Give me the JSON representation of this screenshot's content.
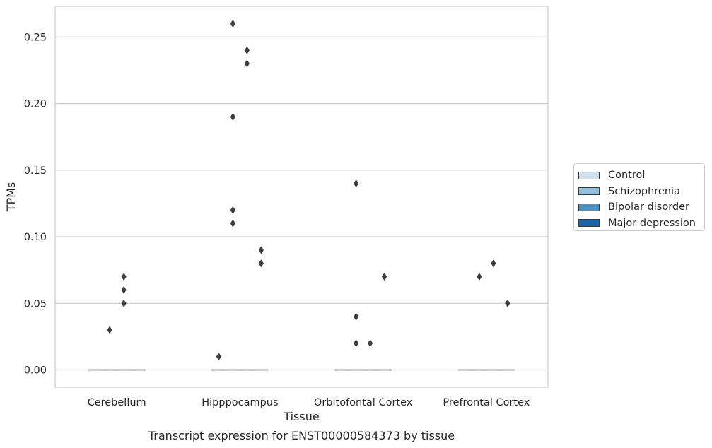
{
  "chart_data": {
    "type": "box",
    "xlabel": "Tissue",
    "ylabel": "TPMs",
    "caption": "Transcript expression for ENST00000584373 by tissue",
    "categories": [
      "Cerebellum",
      "Hipppocampus",
      "Orbitofontal Cortex",
      "Prefrontal Cortex"
    ],
    "ylim": [
      -0.013,
      0.273
    ],
    "yticks": [
      0.0,
      0.05,
      0.1,
      0.15,
      0.2,
      0.25
    ],
    "ytick_labels": [
      "0.00",
      "0.05",
      "0.10",
      "0.15",
      "0.20",
      "0.25"
    ],
    "grid": "horizontal",
    "legend_position": "right",
    "series": [
      {
        "name": "Control",
        "color": "#d0e1f0"
      },
      {
        "name": "Schizophrenia",
        "color": "#93bfdb"
      },
      {
        "name": "Bipolar disorder",
        "color": "#4a90c2"
      },
      {
        "name": "Major depression",
        "color": "#1b64a8"
      }
    ],
    "medians": [
      [
        0.0,
        0.0,
        0.0,
        0.0
      ],
      [
        0.0,
        0.0,
        0.0,
        0.0
      ],
      [
        0.0,
        0.0,
        0.0,
        0.0
      ],
      [
        0.0,
        0.0,
        0.0,
        0.0
      ]
    ],
    "outliers": [
      {
        "category": "Cerebellum",
        "series": "Schizophrenia",
        "values": [
          0.03
        ]
      },
      {
        "category": "Cerebellum",
        "series": "Bipolar disorder",
        "values": [
          0.07,
          0.06,
          0.05
        ]
      },
      {
        "category": "Hipppocampus",
        "series": "Control",
        "values": [
          0.01
        ]
      },
      {
        "category": "Hipppocampus",
        "series": "Schizophrenia",
        "values": [
          0.26,
          0.19,
          0.12,
          0.11
        ]
      },
      {
        "category": "Hipppocampus",
        "series": "Bipolar disorder",
        "values": [
          0.24,
          0.23
        ]
      },
      {
        "category": "Hipppocampus",
        "series": "Major depression",
        "values": [
          0.09,
          0.08
        ]
      },
      {
        "category": "Orbitofontal Cortex",
        "series": "Schizophrenia",
        "values": [
          0.14,
          0.04,
          0.02
        ]
      },
      {
        "category": "Orbitofontal Cortex",
        "series": "Bipolar disorder",
        "values": [
          0.02
        ]
      },
      {
        "category": "Orbitofontal Cortex",
        "series": "Major depression",
        "values": [
          0.07
        ]
      },
      {
        "category": "Prefrontal Cortex",
        "series": "Schizophrenia",
        "values": [
          0.07
        ]
      },
      {
        "category": "Prefrontal Cortex",
        "series": "Bipolar disorder",
        "values": [
          0.08
        ]
      },
      {
        "category": "Prefrontal Cortex",
        "series": "Major depression",
        "values": [
          0.05
        ]
      }
    ]
  }
}
